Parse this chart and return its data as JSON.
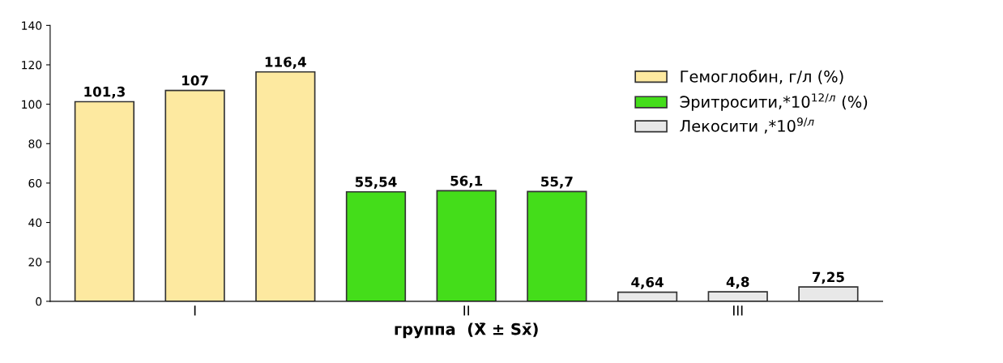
{
  "chart_data": {
    "type": "bar",
    "xlabel": "группа  (X̄ ± Sx̄)",
    "categories": [
      null,
      "I",
      null,
      null,
      "II",
      null,
      null,
      "III",
      null
    ],
    "series": [
      {
        "name": "Гемоглобин, г/л (%)",
        "color": "#fde9a0",
        "values": [
          101.3,
          107,
          116.4,
          null,
          null,
          null,
          null,
          null,
          null
        ],
        "value_labels": [
          "101,3",
          "107",
          "116,4",
          null,
          null,
          null,
          null,
          null,
          null
        ]
      },
      {
        "name": "Эритросити,*10$^{12/л}$ (%)",
        "color": "#44dd1a",
        "values": [
          null,
          null,
          null,
          55.54,
          56.1,
          55.7,
          null,
          null,
          null
        ],
        "value_labels": [
          null,
          null,
          null,
          "55,54",
          "56,1",
          "55,7",
          null,
          null,
          null
        ]
      },
      {
        "name": "Лекосити ,*10$^{9/л}$",
        "color": "#e8e8e8",
        "values": [
          null,
          null,
          null,
          null,
          null,
          null,
          4.64,
          4.8,
          7.25
        ],
        "value_labels": [
          null,
          null,
          null,
          null,
          null,
          null,
          "4,64",
          "4,8",
          "7,25"
        ]
      }
    ],
    "ylim": [
      0,
      140
    ],
    "yticks": [
      0,
      20,
      40,
      60,
      80,
      100,
      120,
      140
    ],
    "legend": "right",
    "grid": false
  }
}
